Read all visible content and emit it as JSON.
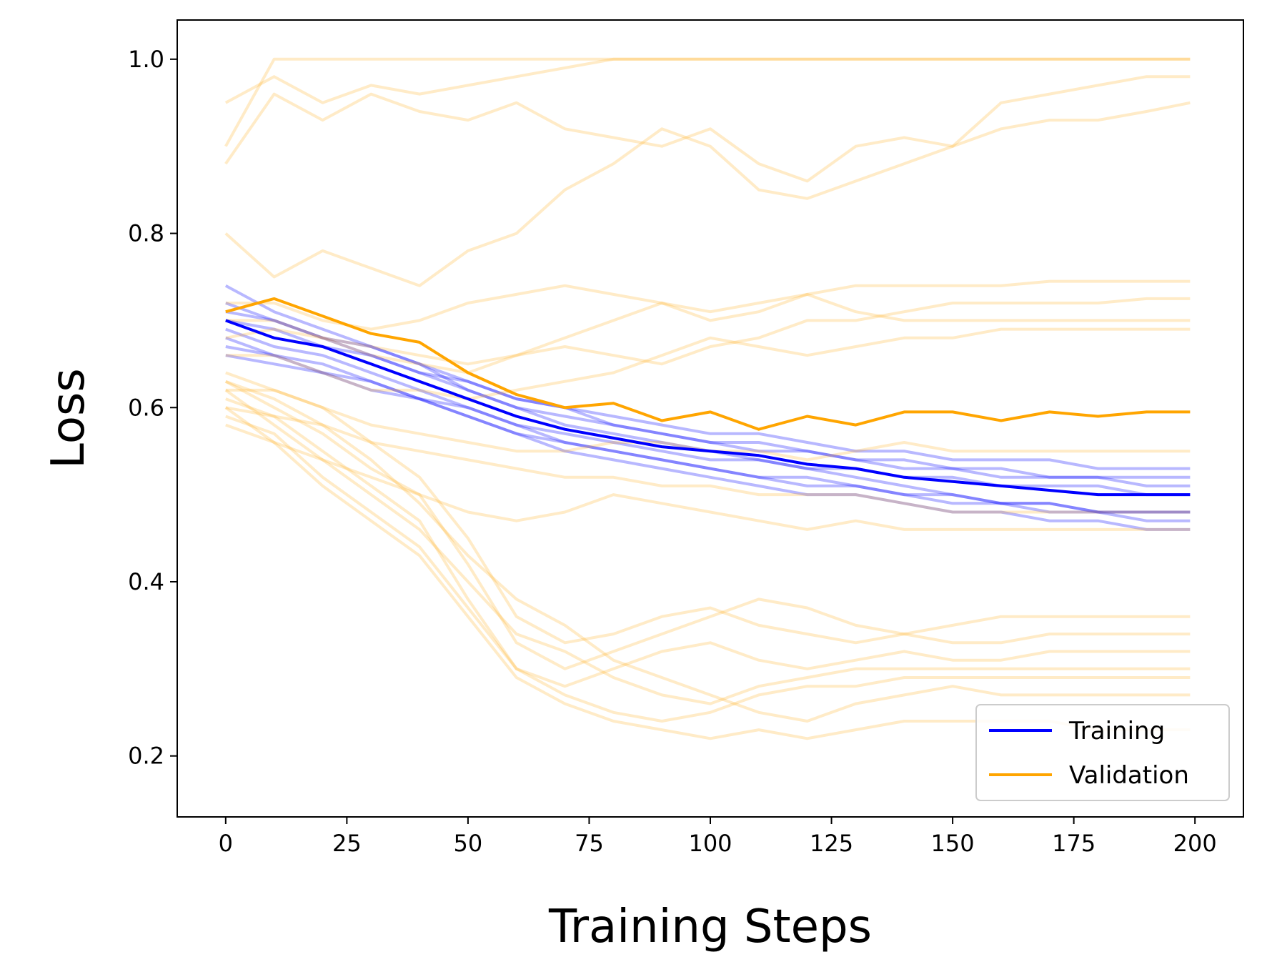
{
  "chart_data": {
    "type": "line",
    "title": "",
    "xlabel": "Training Steps",
    "ylabel": "Loss",
    "xlim": [
      -10,
      210
    ],
    "ylim": [
      0.13,
      1.045
    ],
    "xticks": [
      "0",
      "25",
      "50",
      "75",
      "100",
      "125",
      "150",
      "175",
      "200"
    ],
    "yticks": [
      "0.2",
      "0.4",
      "0.6",
      "0.8",
      "1.0"
    ],
    "grid": false,
    "legend_position": "lower right",
    "legend": [
      {
        "label": "Training",
        "color": "#0000ff"
      },
      {
        "label": "Validation",
        "color": "#ffa500"
      }
    ],
    "colors": {
      "training": "#0000ff",
      "validation": "#ffa500"
    },
    "step_points": [
      0,
      10,
      20,
      30,
      40,
      50,
      60,
      70,
      80,
      90,
      100,
      110,
      120,
      130,
      140,
      150,
      160,
      170,
      180,
      190,
      199
    ],
    "series": [
      {
        "name": "Training",
        "emphasis": "mean",
        "values": [
          0.7,
          0.68,
          0.67,
          0.65,
          0.63,
          0.61,
          0.59,
          0.575,
          0.565,
          0.555,
          0.55,
          0.545,
          0.535,
          0.53,
          0.52,
          0.515,
          0.51,
          0.505,
          0.5,
          0.5,
          0.5
        ]
      },
      {
        "name": "Validation",
        "emphasis": "mean",
        "values": [
          0.71,
          0.725,
          0.705,
          0.685,
          0.675,
          0.64,
          0.615,
          0.6,
          0.605,
          0.585,
          0.595,
          0.575,
          0.59,
          0.58,
          0.595,
          0.595,
          0.585,
          0.595,
          0.59,
          0.595,
          0.595
        ]
      },
      {
        "group": "training-runs",
        "values": [
          0.72,
          0.7,
          0.68,
          0.67,
          0.65,
          0.63,
          0.61,
          0.6,
          0.59,
          0.58,
          0.57,
          0.57,
          0.56,
          0.55,
          0.55,
          0.54,
          0.54,
          0.54,
          0.53,
          0.53,
          0.53
        ]
      },
      {
        "group": "training-runs",
        "values": [
          0.68,
          0.66,
          0.65,
          0.63,
          0.61,
          0.59,
          0.57,
          0.55,
          0.54,
          0.53,
          0.52,
          0.51,
          0.5,
          0.5,
          0.49,
          0.48,
          0.48,
          0.47,
          0.47,
          0.46,
          0.46
        ]
      },
      {
        "group": "training-runs",
        "values": [
          0.74,
          0.71,
          0.69,
          0.67,
          0.65,
          0.62,
          0.6,
          0.58,
          0.57,
          0.56,
          0.55,
          0.54,
          0.53,
          0.52,
          0.51,
          0.5,
          0.49,
          0.49,
          0.48,
          0.48,
          0.48
        ]
      },
      {
        "group": "training-runs",
        "values": [
          0.66,
          0.65,
          0.64,
          0.62,
          0.61,
          0.6,
          0.58,
          0.57,
          0.56,
          0.55,
          0.54,
          0.54,
          0.53,
          0.53,
          0.52,
          0.52,
          0.51,
          0.51,
          0.51,
          0.5,
          0.5
        ]
      },
      {
        "group": "training-runs",
        "values": [
          0.7,
          0.69,
          0.67,
          0.66,
          0.64,
          0.62,
          0.6,
          0.59,
          0.58,
          0.57,
          0.56,
          0.55,
          0.55,
          0.54,
          0.53,
          0.53,
          0.52,
          0.52,
          0.52,
          0.51,
          0.51
        ]
      },
      {
        "group": "training-runs",
        "values": [
          0.69,
          0.67,
          0.66,
          0.64,
          0.62,
          0.6,
          0.58,
          0.56,
          0.55,
          0.54,
          0.53,
          0.52,
          0.51,
          0.51,
          0.5,
          0.49,
          0.49,
          0.48,
          0.48,
          0.47,
          0.47
        ]
      },
      {
        "group": "training-runs",
        "values": [
          0.71,
          0.7,
          0.68,
          0.66,
          0.64,
          0.63,
          0.61,
          0.6,
          0.58,
          0.57,
          0.56,
          0.56,
          0.55,
          0.54,
          0.54,
          0.53,
          0.53,
          0.52,
          0.52,
          0.52,
          0.52
        ]
      },
      {
        "group": "training-runs",
        "values": [
          0.67,
          0.66,
          0.64,
          0.63,
          0.61,
          0.59,
          0.57,
          0.56,
          0.55,
          0.54,
          0.53,
          0.52,
          0.52,
          0.51,
          0.5,
          0.5,
          0.49,
          0.49,
          0.48,
          0.48,
          0.48
        ]
      },
      {
        "group": "validation-runs",
        "values": [
          0.9,
          1.0,
          1.0,
          1.0,
          1.0,
          1.0,
          1.0,
          1.0,
          1.0,
          1.0,
          1.0,
          1.0,
          1.0,
          1.0,
          1.0,
          1.0,
          1.0,
          1.0,
          1.0,
          1.0,
          1.0
        ]
      },
      {
        "group": "validation-runs",
        "values": [
          0.95,
          0.98,
          0.95,
          0.97,
          0.96,
          0.97,
          0.98,
          0.99,
          1.0,
          1.0,
          1.0,
          1.0,
          1.0,
          1.0,
          1.0,
          1.0,
          1.0,
          1.0,
          1.0,
          1.0,
          1.0
        ]
      },
      {
        "group": "validation-runs",
        "values": [
          0.88,
          0.96,
          0.93,
          0.96,
          0.94,
          0.93,
          0.95,
          0.92,
          0.91,
          0.9,
          0.92,
          0.88,
          0.86,
          0.9,
          0.91,
          0.9,
          0.95,
          0.96,
          0.97,
          0.98,
          0.98
        ]
      },
      {
        "group": "validation-runs",
        "values": [
          0.8,
          0.75,
          0.78,
          0.76,
          0.74,
          0.78,
          0.8,
          0.85,
          0.88,
          0.92,
          0.9,
          0.85,
          0.84,
          0.86,
          0.88,
          0.9,
          0.92,
          0.93,
          0.93,
          0.94,
          0.95
        ]
      },
      {
        "group": "validation-runs",
        "values": [
          0.72,
          0.72,
          0.7,
          0.69,
          0.7,
          0.72,
          0.73,
          0.74,
          0.73,
          0.72,
          0.7,
          0.71,
          0.73,
          0.74,
          0.74,
          0.74,
          0.74,
          0.745,
          0.745,
          0.745,
          0.745
        ]
      },
      {
        "group": "validation-runs",
        "values": [
          0.7,
          0.7,
          0.68,
          0.67,
          0.66,
          0.65,
          0.66,
          0.68,
          0.7,
          0.72,
          0.71,
          0.72,
          0.73,
          0.71,
          0.7,
          0.7,
          0.7,
          0.7,
          0.7,
          0.7,
          0.7
        ]
      },
      {
        "group": "validation-runs",
        "values": [
          0.68,
          0.69,
          0.68,
          0.66,
          0.65,
          0.64,
          0.66,
          0.67,
          0.66,
          0.65,
          0.67,
          0.68,
          0.7,
          0.7,
          0.71,
          0.72,
          0.72,
          0.72,
          0.72,
          0.725,
          0.725
        ]
      },
      {
        "group": "validation-runs",
        "values": [
          0.66,
          0.66,
          0.64,
          0.62,
          0.62,
          0.61,
          0.62,
          0.63,
          0.64,
          0.66,
          0.68,
          0.67,
          0.66,
          0.67,
          0.68,
          0.68,
          0.69,
          0.69,
          0.69,
          0.69,
          0.69
        ]
      },
      {
        "group": "validation-runs",
        "values": [
          0.62,
          0.62,
          0.6,
          0.58,
          0.57,
          0.56,
          0.55,
          0.55,
          0.56,
          0.56,
          0.55,
          0.55,
          0.54,
          0.55,
          0.56,
          0.55,
          0.55,
          0.55,
          0.55,
          0.55,
          0.55
        ]
      },
      {
        "group": "validation-runs",
        "values": [
          0.6,
          0.59,
          0.58,
          0.56,
          0.55,
          0.54,
          0.53,
          0.52,
          0.52,
          0.51,
          0.51,
          0.5,
          0.5,
          0.5,
          0.49,
          0.48,
          0.48,
          0.48,
          0.48,
          0.48,
          0.48
        ]
      },
      {
        "group": "validation-runs",
        "values": [
          0.58,
          0.56,
          0.54,
          0.52,
          0.5,
          0.48,
          0.47,
          0.48,
          0.5,
          0.49,
          0.48,
          0.47,
          0.46,
          0.47,
          0.46,
          0.46,
          0.46,
          0.46,
          0.46,
          0.46,
          0.46
        ]
      },
      {
        "group": "validation-runs",
        "values": [
          0.64,
          0.62,
          0.6,
          0.56,
          0.52,
          0.45,
          0.36,
          0.33,
          0.34,
          0.36,
          0.37,
          0.35,
          0.34,
          0.33,
          0.34,
          0.35,
          0.36,
          0.36,
          0.36,
          0.36,
          0.36
        ]
      },
      {
        "group": "validation-runs",
        "values": [
          0.63,
          0.6,
          0.57,
          0.53,
          0.5,
          0.42,
          0.33,
          0.3,
          0.32,
          0.34,
          0.36,
          0.38,
          0.37,
          0.35,
          0.34,
          0.33,
          0.33,
          0.34,
          0.34,
          0.34,
          0.34
        ]
      },
      {
        "group": "validation-runs",
        "values": [
          0.61,
          0.59,
          0.55,
          0.51,
          0.47,
          0.38,
          0.3,
          0.28,
          0.3,
          0.32,
          0.33,
          0.31,
          0.3,
          0.31,
          0.32,
          0.31,
          0.31,
          0.32,
          0.32,
          0.32,
          0.32
        ]
      },
      {
        "group": "validation-runs",
        "values": [
          0.62,
          0.58,
          0.54,
          0.5,
          0.46,
          0.4,
          0.34,
          0.32,
          0.29,
          0.27,
          0.26,
          0.28,
          0.29,
          0.3,
          0.3,
          0.3,
          0.3,
          0.3,
          0.3,
          0.3,
          0.3
        ]
      },
      {
        "group": "validation-runs",
        "values": [
          0.59,
          0.57,
          0.52,
          0.48,
          0.44,
          0.37,
          0.3,
          0.27,
          0.25,
          0.24,
          0.25,
          0.27,
          0.28,
          0.28,
          0.29,
          0.29,
          0.29,
          0.29,
          0.29,
          0.29,
          0.29
        ]
      },
      {
        "group": "validation-runs",
        "values": [
          0.6,
          0.56,
          0.51,
          0.47,
          0.43,
          0.36,
          0.29,
          0.26,
          0.24,
          0.23,
          0.22,
          0.23,
          0.22,
          0.23,
          0.24,
          0.24,
          0.24,
          0.24,
          0.23,
          0.23,
          0.23
        ]
      },
      {
        "group": "validation-runs",
        "values": [
          0.63,
          0.61,
          0.58,
          0.54,
          0.49,
          0.43,
          0.38,
          0.35,
          0.31,
          0.29,
          0.27,
          0.25,
          0.24,
          0.26,
          0.27,
          0.28,
          0.27,
          0.27,
          0.27,
          0.27,
          0.27
        ]
      }
    ]
  }
}
